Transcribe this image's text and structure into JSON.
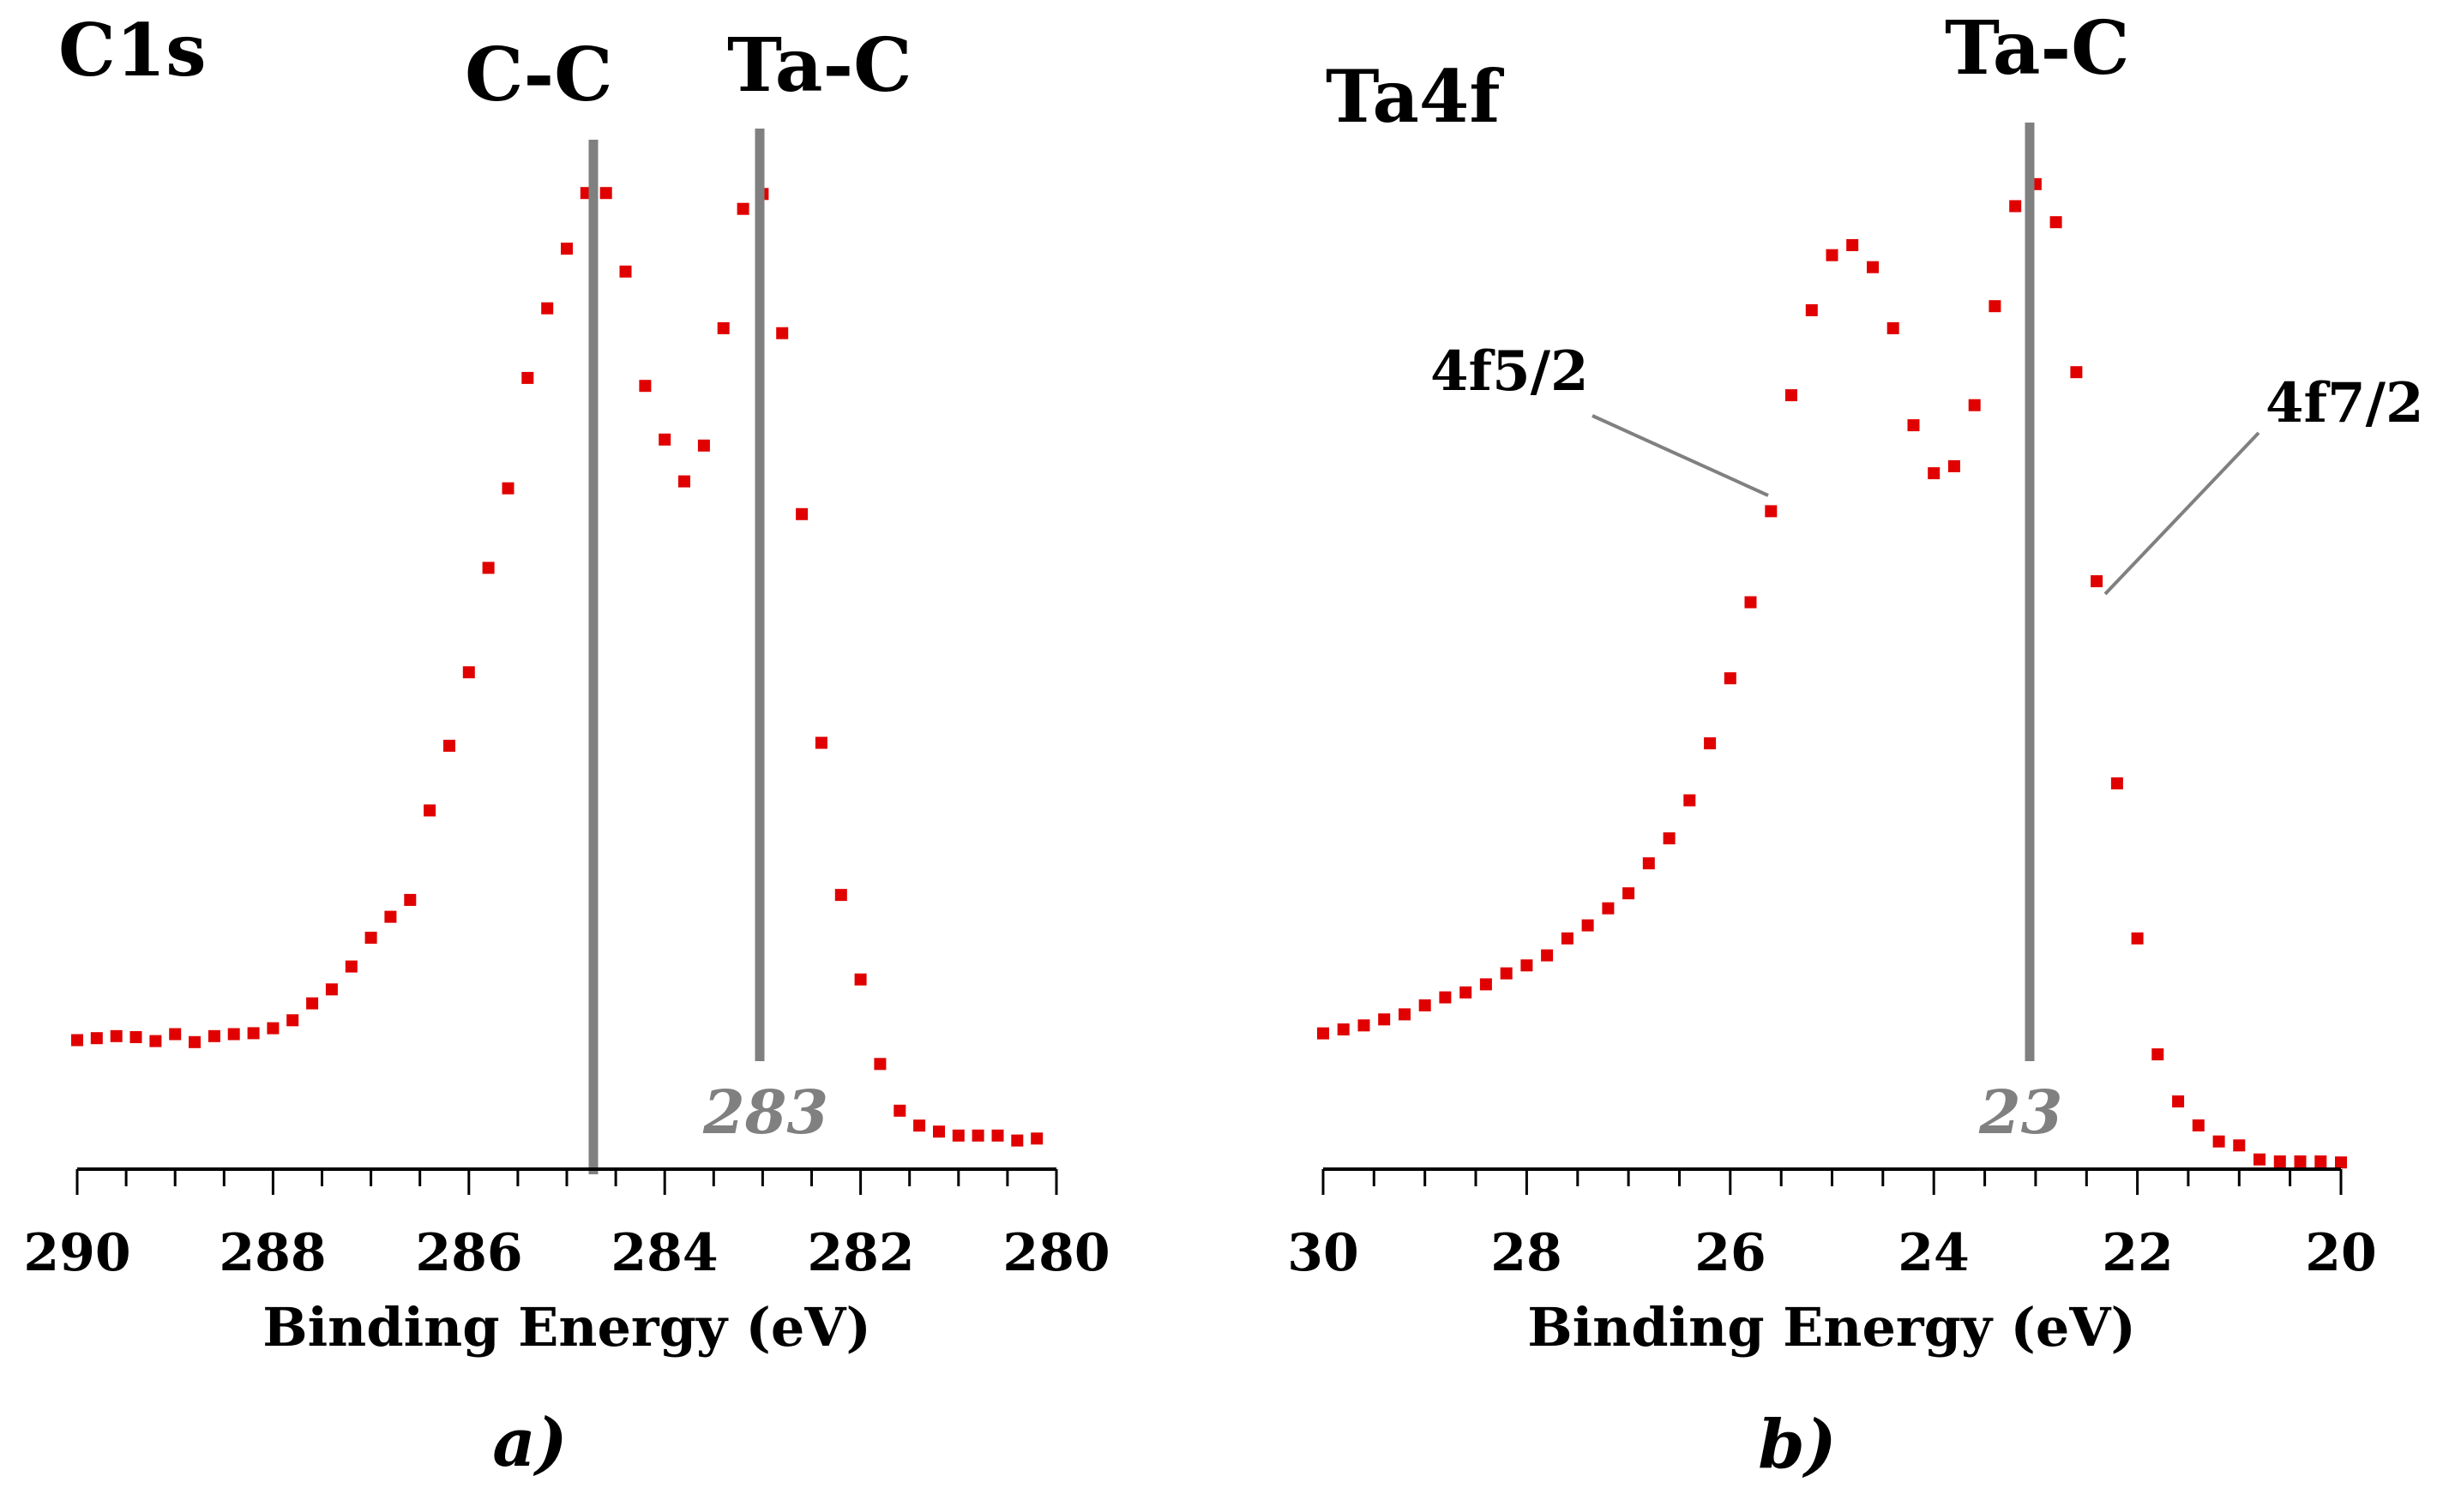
{
  "colors": {
    "points": "#e00000",
    "reference": "#808080",
    "axis": "#000000"
  },
  "chart_data": [
    {
      "type": "scatter",
      "title": "C1s",
      "caption": "a)",
      "xlabel": "Binding Energy (eV)",
      "ylabel": "",
      "xlim": [
        290,
        280
      ],
      "ylim": [
        0,
        100
      ],
      "x_ticks": [
        290,
        288,
        286,
        284,
        282,
        280
      ],
      "x_tick_labels": [
        "290",
        "288",
        "286",
        "284",
        "282",
        "280"
      ],
      "grid": false,
      "series": [
        {
          "name": "C1s",
          "x": [
            290,
            289.8,
            289.6,
            289.4,
            289.2,
            289.0,
            288.8,
            288.6,
            288.4,
            288.2,
            288.0,
            287.8,
            287.6,
            287.4,
            287.2,
            287.0,
            286.8,
            286.6,
            286.4,
            286.2,
            286.0,
            285.8,
            285.6,
            285.4,
            285.2,
            285.0,
            284.8,
            284.6,
            284.4,
            284.2,
            284.0,
            283.8,
            283.6,
            283.4,
            283.2,
            283.0,
            282.8,
            282.6,
            282.4,
            282.2,
            282.0,
            281.8,
            281.6,
            281.4,
            281.2,
            281.0,
            280.8,
            280.6,
            280.4,
            280.2
          ],
          "y": [
            12.2,
            12.4,
            12.6,
            12.5,
            12.1,
            12.8,
            12.0,
            12.6,
            12.8,
            12.9,
            13.4,
            14.2,
            15.9,
            17.3,
            19.6,
            22.5,
            24.6,
            26.3,
            35.3,
            41.8,
            49.2,
            59.7,
            67.7,
            78.8,
            85.8,
            91.8,
            97.4,
            97.4,
            89.5,
            78.0,
            72.6,
            68.4,
            72.0,
            83.8,
            95.8,
            97.3,
            83.3,
            65.1,
            42.1,
            26.8,
            18.3,
            9.8,
            5.1,
            3.6,
            3.0,
            2.6,
            2.6,
            2.6,
            2.1,
            2.3
          ]
        }
      ],
      "annotations": [
        {
          "text": "C-C",
          "x": 284.7
        },
        {
          "text": "Ta-C",
          "x": 283,
          "value_label": "283"
        }
      ]
    },
    {
      "type": "scatter",
      "title": "Ta4f",
      "caption": "b)",
      "xlabel": "Binding Energy (eV)",
      "ylabel": "",
      "xlim": [
        30,
        20
      ],
      "ylim": [
        0,
        100
      ],
      "x_ticks": [
        30,
        28,
        26,
        24,
        22,
        20
      ],
      "x_tick_labels": [
        "30",
        "28",
        "26",
        "24",
        "22",
        "20"
      ],
      "grid": false,
      "series": [
        {
          "name": "Ta4f",
          "x": [
            30.0,
            29.8,
            29.6,
            29.4,
            29.2,
            29.0,
            28.8,
            28.6,
            28.4,
            28.2,
            28.0,
            27.8,
            27.6,
            27.4,
            27.2,
            27.0,
            26.8,
            26.6,
            26.4,
            26.2,
            26.0,
            25.8,
            25.6,
            25.4,
            25.2,
            25.0,
            24.8,
            24.6,
            24.4,
            24.2,
            24.0,
            23.8,
            23.6,
            23.4,
            23.2,
            23.0,
            22.8,
            22.6,
            22.4,
            22.2,
            22.0,
            21.8,
            21.6,
            21.4,
            21.2,
            21.0,
            20.8,
            20.6,
            20.4,
            20.2,
            20.0
          ],
          "y": [
            13.4,
            13.8,
            14.2,
            14.8,
            15.3,
            16.2,
            17.0,
            17.5,
            18.3,
            19.4,
            20.2,
            21.2,
            22.9,
            24.2,
            25.9,
            27.4,
            30.4,
            32.9,
            36.7,
            42.4,
            48.9,
            56.5,
            65.6,
            77.2,
            85.7,
            91.2,
            92.2,
            90.0,
            83.9,
            74.2,
            69.4,
            70.1,
            76.2,
            86.1,
            96.1,
            98.3,
            94.5,
            79.5,
            58.6,
            38.4,
            22.9,
            11.3,
            6.6,
            4.2,
            2.6,
            2.2,
            0.8,
            0.6,
            0.6,
            0.6,
            0.5
          ]
        }
      ],
      "annotations": [
        {
          "text": "Ta-C",
          "x": 23,
          "value_label": "23"
        },
        {
          "text": "4f5/2"
        },
        {
          "text": "4f7/2"
        }
      ]
    }
  ]
}
